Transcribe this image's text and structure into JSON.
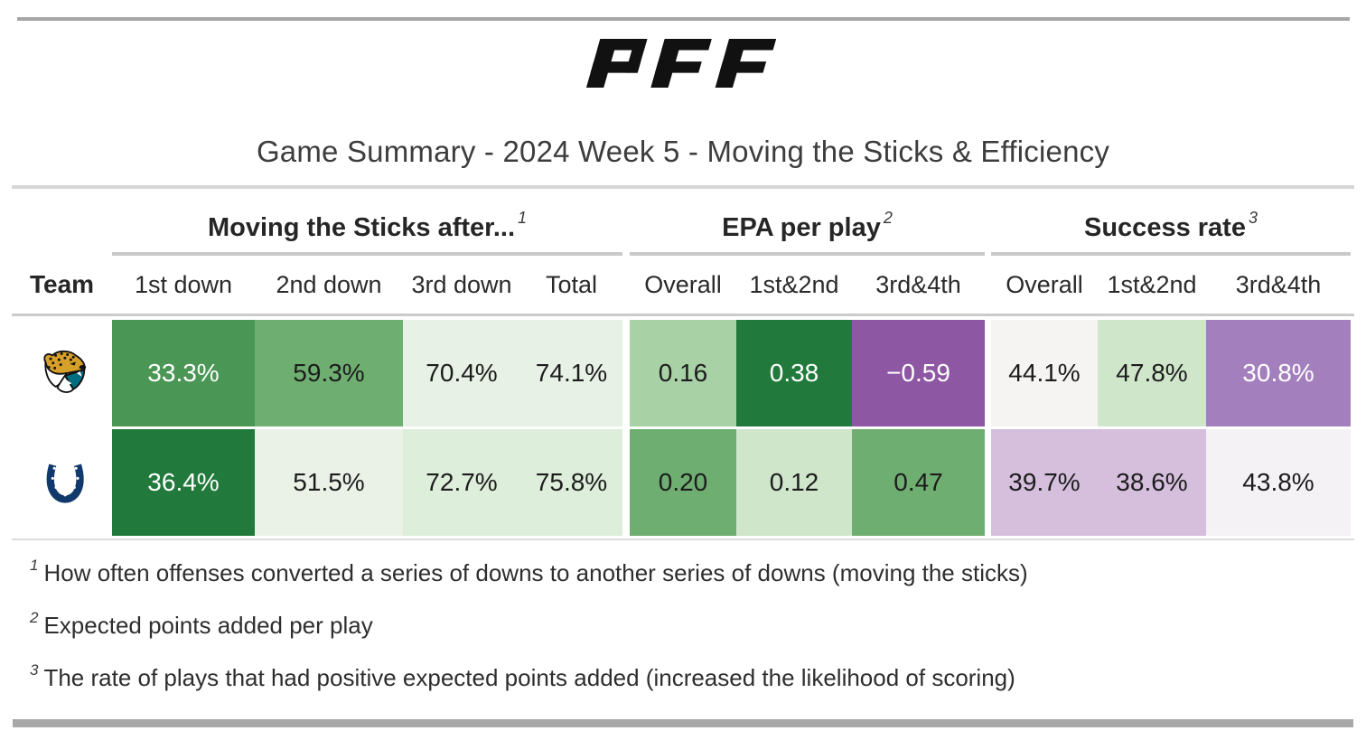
{
  "page": {
    "brand_logo_text": "PFF",
    "title": "Game Summary - 2024 Week 5 - Moving the Sticks & Efficiency"
  },
  "table": {
    "team_header": "Team",
    "groups": [
      {
        "label": "Moving the Sticks after...",
        "sup": "1"
      },
      {
        "label": "EPA per play",
        "sup": "2"
      },
      {
        "label": "Success rate",
        "sup": "3"
      }
    ],
    "columns": [
      "1st down",
      "2nd down",
      "3rd down",
      "Total",
      "Overall",
      "1st&2nd",
      "3rd&4th",
      "Overall",
      "1st&2nd",
      "3rd&4th"
    ],
    "rows": [
      {
        "team": "Jacksonville Jaguars",
        "logo": "jaguars",
        "cells": [
          {
            "value": "33.3%",
            "bg": "#4a9655",
            "fg": "#ffffff"
          },
          {
            "value": "59.3%",
            "bg": "#6fae71",
            "fg": "#1c1c1c"
          },
          {
            "value": "70.4%",
            "bg": "#e8f1e5",
            "fg": "#1c1c1c"
          },
          {
            "value": "74.1%",
            "bg": "#e8f1e5",
            "fg": "#1c1c1c"
          },
          {
            "value": "0.16",
            "bg": "#a8d1a5",
            "fg": "#1c1c1c"
          },
          {
            "value": "0.38",
            "bg": "#217a3c",
            "fg": "#ffffff"
          },
          {
            "value": "−0.59",
            "bg": "#8e57a4",
            "fg": "#ffffff"
          },
          {
            "value": "44.1%",
            "bg": "#f5f4f2",
            "fg": "#1c1c1c"
          },
          {
            "value": "47.8%",
            "bg": "#cfe6cb",
            "fg": "#1c1c1c"
          },
          {
            "value": "30.8%",
            "bg": "#a47fbe",
            "fg": "#ffffff"
          }
        ]
      },
      {
        "team": "Indianapolis Colts",
        "logo": "colts",
        "cells": [
          {
            "value": "36.4%",
            "bg": "#217a3c",
            "fg": "#ffffff"
          },
          {
            "value": "51.5%",
            "bg": "#eaf2e8",
            "fg": "#1c1c1c"
          },
          {
            "value": "72.7%",
            "bg": "#ddeeda",
            "fg": "#1c1c1c"
          },
          {
            "value": "75.8%",
            "bg": "#ddeeda",
            "fg": "#1c1c1c"
          },
          {
            "value": "0.20",
            "bg": "#6fae71",
            "fg": "#1c1c1c"
          },
          {
            "value": "0.12",
            "bg": "#cfe6cb",
            "fg": "#1c1c1c"
          },
          {
            "value": "0.47",
            "bg": "#6fae71",
            "fg": "#1c1c1c"
          },
          {
            "value": "39.7%",
            "bg": "#d5bfdd",
            "fg": "#1c1c1c"
          },
          {
            "value": "38.6%",
            "bg": "#d5bfdd",
            "fg": "#1c1c1c"
          },
          {
            "value": "43.8%",
            "bg": "#f5f2f5",
            "fg": "#1c1c1c"
          }
        ]
      }
    ]
  },
  "footnotes": [
    {
      "sup": "1",
      "text": "How often offenses converted a series of downs to another series of downs (moving the sticks)"
    },
    {
      "sup": "2",
      "text": "Expected points added per play"
    },
    {
      "sup": "3",
      "text": "The rate of plays that had positive expected points added (increased the likelihood of scoring)"
    }
  ],
  "colors": {
    "green_dark": "#217a3c",
    "green_mid": "#4a9655",
    "green_soft": "#6fae71",
    "green_light": "#a8d1a5",
    "green_pale": "#cfe6cb",
    "green_faint": "#e8f1e5",
    "purple_dark": "#8e57a4",
    "purple_mid": "#a47fbe",
    "purple_pale": "#d5bfdd",
    "neutral_offwhite": "#f5f4f2",
    "rule_gray": "#a6a6a6",
    "jaguars_gold": "#d7a029",
    "jaguars_teal": "#006e82",
    "colts_navy": "#12396b"
  },
  "chart_data": {
    "type": "table",
    "title": "Game Summary - 2024 Week 5 - Moving the Sticks & Efficiency",
    "column_groups": [
      "Moving the Sticks after...",
      "EPA per play",
      "Success rate"
    ],
    "columns": [
      "1st down",
      "2nd down",
      "3rd down",
      "Total",
      "Overall",
      "1st&2nd",
      "3rd&4th",
      "Overall",
      "1st&2nd",
      "3rd&4th"
    ],
    "rows": [
      {
        "team": "Jacksonville Jaguars",
        "moving_the_sticks_pct": {
          "1st_down": 33.3,
          "2nd_down": 59.3,
          "3rd_down": 70.4,
          "total": 74.1
        },
        "epa_per_play": {
          "overall": 0.16,
          "1st_and_2nd": 0.38,
          "3rd_and_4th": -0.59
        },
        "success_rate_pct": {
          "overall": 44.1,
          "1st_and_2nd": 47.8,
          "3rd_and_4th": 30.8
        }
      },
      {
        "team": "Indianapolis Colts",
        "moving_the_sticks_pct": {
          "1st_down": 36.4,
          "2nd_down": 51.5,
          "3rd_down": 72.7,
          "total": 75.8
        },
        "epa_per_play": {
          "overall": 0.2,
          "1st_and_2nd": 0.12,
          "3rd_and_4th": 0.47
        },
        "success_rate_pct": {
          "overall": 39.7,
          "1st_and_2nd": 38.6,
          "3rd_and_4th": 43.8
        }
      }
    ],
    "notes": [
      "How often offenses converted a series of downs to another series of downs (moving the sticks)",
      "Expected points added per play",
      "The rate of plays that had positive expected points added (increased the likelihood of scoring)"
    ],
    "color_encoding": "green = good, purple = bad (cell heatmap shading)"
  }
}
